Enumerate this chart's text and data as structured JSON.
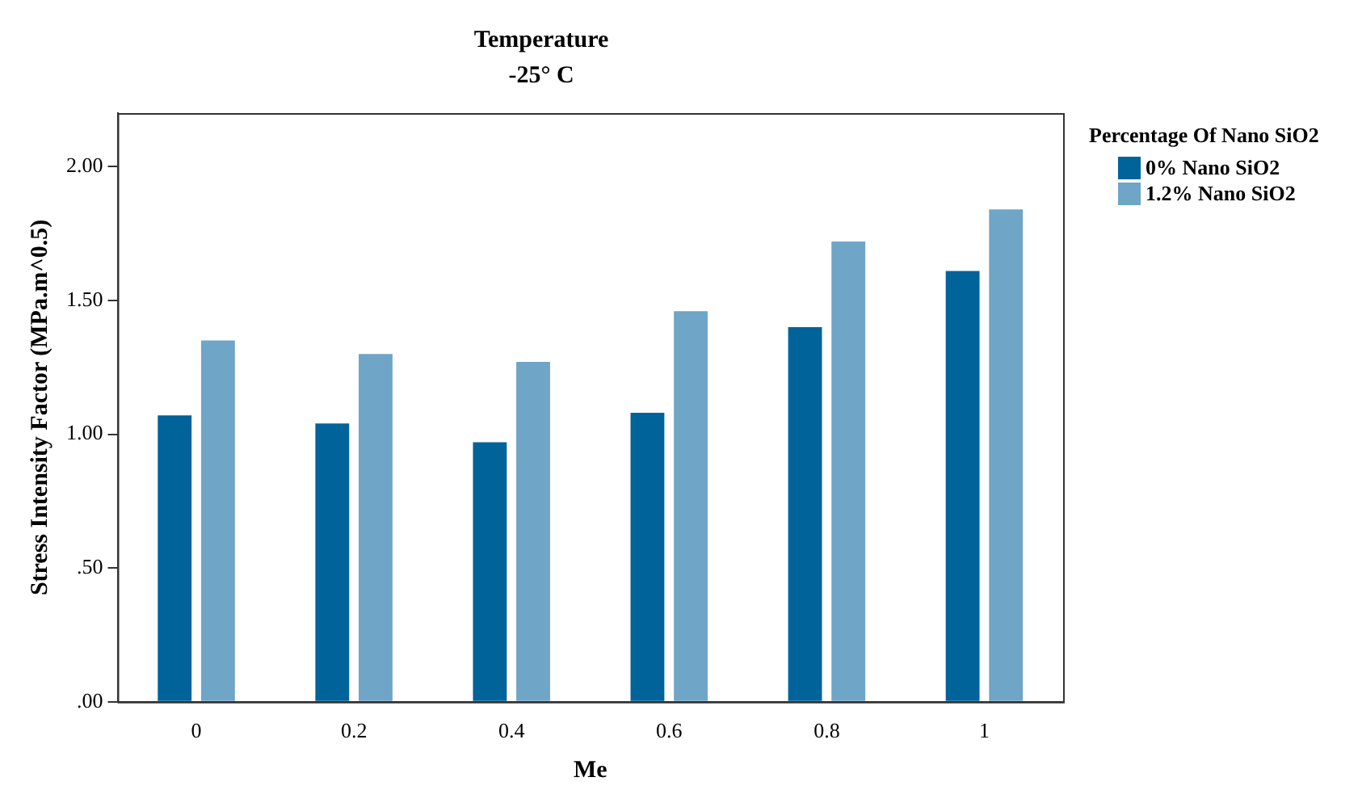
{
  "chart_data": {
    "type": "bar",
    "title": "Temperature",
    "subtitle": "-25° C",
    "xlabel": "Me",
    "ylabel": "Stress Intensity Factor (MPa.m^0.5)",
    "legend_title": "Percentage Of Nano SiO2",
    "categories": [
      "0",
      "0.2",
      "0.4",
      "0.6",
      "0.8",
      "1"
    ],
    "series": [
      {
        "name": "0% Nano SiO2",
        "color": "#00639a",
        "values": [
          1.07,
          1.04,
          0.97,
          1.08,
          1.4,
          1.61
        ]
      },
      {
        "name": "1.2% Nano SiO2",
        "color": "#6fa5c6",
        "values": [
          1.35,
          1.3,
          1.27,
          1.46,
          1.72,
          1.84
        ]
      }
    ],
    "ylim": [
      0,
      2.2
    ],
    "yticks": [
      {
        "value": 0,
        "label": ".00"
      },
      {
        "value": 0.5,
        "label": ".50"
      },
      {
        "value": 1,
        "label": "1.00"
      },
      {
        "value": 1.5,
        "label": "1.50"
      },
      {
        "value": 2,
        "label": "2.00"
      }
    ],
    "grid": false,
    "legend": "right"
  }
}
